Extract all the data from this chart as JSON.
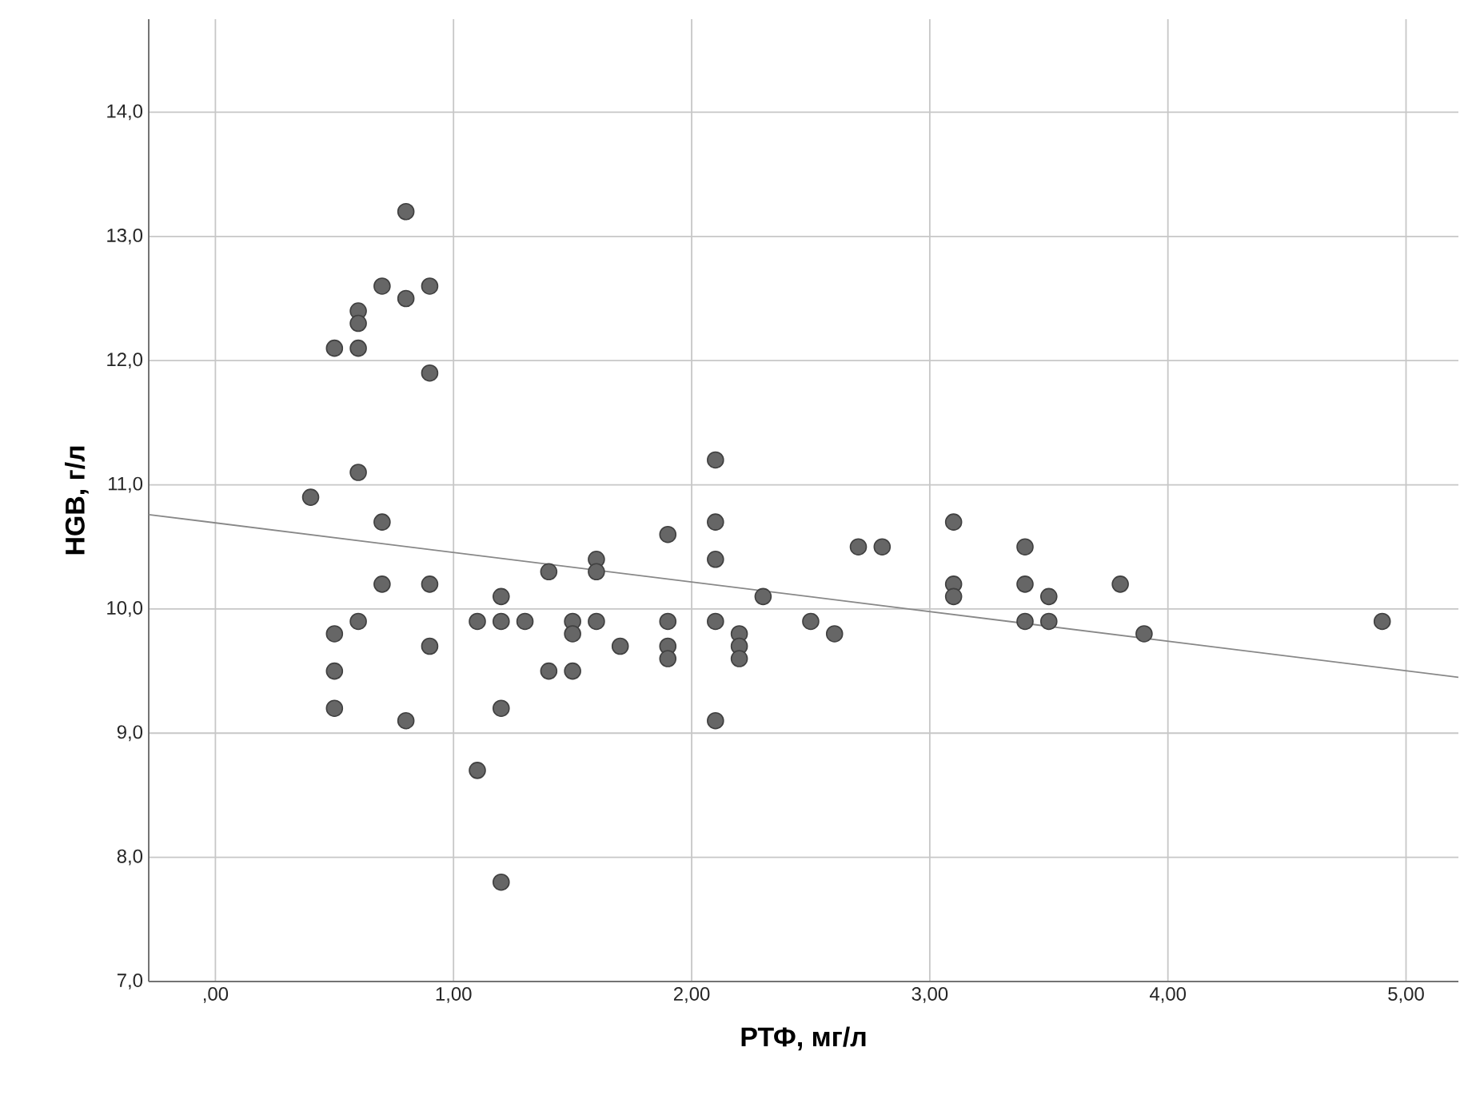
{
  "chart_data": {
    "type": "scatter",
    "xlabel": "РТФ, мг/л",
    "ylabel": "HGB, г/л",
    "xlim": [
      -0.28,
      5.22
    ],
    "ylim": [
      7,
      14.75
    ],
    "xticks": [
      {
        "value": 0,
        "label": ",00"
      },
      {
        "value": 1,
        "label": "1,00"
      },
      {
        "value": 2,
        "label": "2,00"
      },
      {
        "value": 3,
        "label": "3,00"
      },
      {
        "value": 4,
        "label": "4,00"
      },
      {
        "value": 5,
        "label": "5,00"
      }
    ],
    "yticks": [
      {
        "value": 7,
        "label": "7,0"
      },
      {
        "value": 8,
        "label": "8,0"
      },
      {
        "value": 9,
        "label": "9,0"
      },
      {
        "value": 10,
        "label": "10,0"
      },
      {
        "value": 11,
        "label": "11,0"
      },
      {
        "value": 12,
        "label": "12,0"
      },
      {
        "value": 13,
        "label": "13,0"
      },
      {
        "value": 14,
        "label": "14,0"
      }
    ],
    "grid": true,
    "marker": "circle",
    "series": [
      {
        "color": "#666666",
        "x": [
          0.4,
          0.5,
          0.5,
          0.5,
          0.5,
          0.6,
          0.6,
          0.6,
          0.6,
          0.6,
          0.7,
          0.7,
          0.7,
          0.8,
          0.8,
          0.8,
          0.9,
          0.9,
          0.9,
          0.9,
          1.1,
          1.1,
          1.2,
          1.2,
          1.2,
          1.2,
          1.3,
          1.4,
          1.4,
          1.5,
          1.5,
          1.5,
          1.6,
          1.6,
          1.6,
          1.7,
          1.9,
          1.9,
          1.9,
          1.9,
          2.1,
          2.1,
          2.1,
          2.1,
          2.1,
          2.2,
          2.2,
          2.2,
          2.3,
          2.5,
          2.6,
          2.7,
          2.8,
          3.1,
          3.1,
          3.1,
          3.4,
          3.4,
          3.4,
          3.5,
          3.5,
          3.8,
          3.9,
          4.9
        ],
        "values": [
          10.9,
          12.1,
          9.8,
          9.5,
          9.2,
          12.4,
          12.3,
          12.1,
          11.1,
          9.9,
          12.6,
          10.7,
          10.2,
          13.2,
          12.5,
          9.1,
          12.6,
          11.9,
          10.2,
          9.7,
          9.9,
          8.7,
          10.1,
          9.9,
          9.2,
          7.8,
          9.9,
          10.3,
          9.5,
          9.9,
          9.8,
          9.5,
          10.4,
          10.3,
          9.9,
          9.7,
          10.6,
          9.9,
          9.7,
          9.6,
          11.2,
          10.7,
          10.4,
          9.9,
          9.1,
          9.8,
          9.7,
          9.6,
          10.1,
          9.9,
          9.8,
          10.5,
          10.5,
          10.7,
          10.2,
          10.1,
          10.5,
          10.2,
          9.9,
          10.1,
          9.9,
          10.2,
          9.8,
          9.9
        ]
      },
      {
        "type": "line",
        "marker": "none",
        "color": "#888888",
        "x": [
          -0.28,
          5.22
        ],
        "values": [
          10.76,
          9.45
        ]
      }
    ]
  }
}
